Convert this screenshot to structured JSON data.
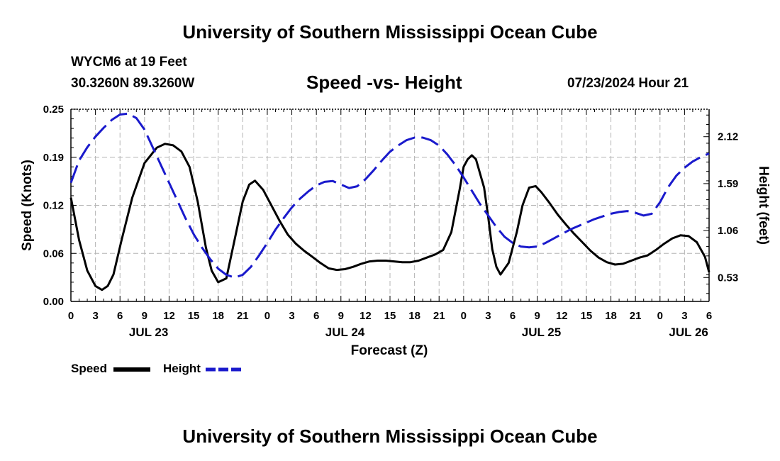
{
  "header": {
    "title": "University of Southern Mississippi Ocean Cube",
    "station": "WYCM6 at 19 Feet",
    "coords": "30.3260N  89.3260W",
    "subtitle": "Speed -vs- Height",
    "datetime": "07/23/2024 Hour 21"
  },
  "footer": {
    "title": "University of Southern Mississippi Ocean Cube"
  },
  "legend": {
    "speed_label": "Speed",
    "height_label": "Height"
  },
  "colors": {
    "speed": "#000000",
    "height": "#1a1acc",
    "grid": "#b4b4b4"
  },
  "chart_data": {
    "type": "line",
    "title": "Speed -vs- Height",
    "xlabel": "Forecast (Z)",
    "ylabel_left": "Speed (Knots)",
    "ylabel_right": "Height (feet)",
    "x_unit": "hours since 07/23 00Z",
    "xlim": [
      0,
      78
    ],
    "ylim_left": [
      0,
      0.25
    ],
    "ylim_right": [
      0.26,
      2.43
    ],
    "left_ticks": [
      "0.00",
      "0.06",
      "0.12",
      "0.19",
      "0.25"
    ],
    "left_tick_values": [
      0,
      0.0625,
      0.125,
      0.1875,
      0.25
    ],
    "right_ticks": [
      "0.53",
      "1.06",
      "1.59",
      "2.12"
    ],
    "right_tick_values": [
      0.53,
      1.06,
      1.59,
      2.12
    ],
    "x_tick_labels": [
      "0",
      "3",
      "6",
      "9",
      "12",
      "15",
      "18",
      "21",
      "0",
      "3",
      "6",
      "9",
      "12",
      "15",
      "18",
      "21",
      "0",
      "3",
      "6",
      "9",
      "12",
      "15",
      "18",
      "21",
      "0",
      "3",
      "6"
    ],
    "x_tick_values": [
      0,
      3,
      6,
      9,
      12,
      15,
      18,
      21,
      24,
      27,
      30,
      33,
      36,
      39,
      42,
      45,
      48,
      51,
      54,
      57,
      60,
      63,
      66,
      69,
      72,
      75,
      78
    ],
    "date_labels": [
      {
        "text": "JUL 23",
        "x": 9.5
      },
      {
        "text": "JUL 24",
        "x": 33.5
      },
      {
        "text": "JUL 25",
        "x": 57.5
      },
      {
        "text": "JUL 26",
        "x": 75.5
      }
    ],
    "series": [
      {
        "name": "Speed",
        "axis": "left",
        "style": "solid",
        "x": [
          0,
          1,
          2,
          3,
          3.8,
          4.5,
          5.2,
          6.2,
          7.5,
          9,
          10.5,
          11.5,
          12.5,
          13.5,
          14.5,
          15.5,
          16.5,
          17.2,
          18,
          19,
          20,
          21,
          21.8,
          22.5,
          23.5,
          24.5,
          25.5,
          26.5,
          27.5,
          28.5,
          29.5,
          30.5,
          31.5,
          32.5,
          33.5,
          34.5,
          35.5,
          36.5,
          37.5,
          38.5,
          39.5,
          40.5,
          41.5,
          42.5,
          43.5,
          44.5,
          45.5,
          46.5,
          47.5,
          48,
          48.5,
          49,
          49.5,
          50.5,
          51,
          51.5,
          52,
          52.5,
          53.5,
          54.5,
          55.2,
          56,
          56.8,
          57.5,
          58.5,
          59.5,
          60.5,
          61.5,
          62.5,
          63.5,
          64.5,
          65.5,
          66.5,
          67.5,
          68.5,
          69.5,
          70.5,
          71.5,
          72.5,
          73.5,
          74.5,
          75.5,
          76.5,
          77.5,
          78
        ],
        "y": [
          0.135,
          0.08,
          0.04,
          0.02,
          0.015,
          0.02,
          0.035,
          0.08,
          0.135,
          0.18,
          0.2,
          0.205,
          0.203,
          0.195,
          0.175,
          0.13,
          0.07,
          0.04,
          0.025,
          0.03,
          0.08,
          0.13,
          0.152,
          0.157,
          0.145,
          0.125,
          0.105,
          0.087,
          0.075,
          0.066,
          0.058,
          0.05,
          0.043,
          0.041,
          0.042,
          0.045,
          0.049,
          0.052,
          0.053,
          0.053,
          0.052,
          0.051,
          0.051,
          0.053,
          0.057,
          0.061,
          0.067,
          0.09,
          0.145,
          0.175,
          0.185,
          0.19,
          0.185,
          0.148,
          0.11,
          0.068,
          0.045,
          0.035,
          0.05,
          0.09,
          0.125,
          0.148,
          0.15,
          0.142,
          0.128,
          0.113,
          0.1,
          0.088,
          0.077,
          0.066,
          0.057,
          0.051,
          0.048,
          0.049,
          0.053,
          0.057,
          0.06,
          0.067,
          0.075,
          0.082,
          0.086,
          0.085,
          0.077,
          0.058,
          0.038
        ]
      },
      {
        "name": "Height",
        "axis": "right",
        "style": "dashed",
        "x": [
          0,
          1,
          2,
          3,
          4,
          5,
          6,
          7,
          8,
          9,
          10,
          11,
          12,
          13,
          14,
          15,
          16,
          17,
          18,
          19,
          20,
          21,
          22,
          23,
          24,
          25,
          26,
          27,
          28,
          29,
          30,
          31,
          32,
          33,
          34,
          35,
          36,
          37,
          38,
          39,
          40,
          41,
          42,
          43,
          44,
          45,
          46,
          47,
          48,
          49,
          50,
          51,
          52,
          53,
          54,
          55,
          56,
          57,
          58,
          59,
          60,
          61,
          62,
          63,
          64,
          65,
          66,
          67,
          68,
          69,
          70,
          71,
          72,
          73,
          74,
          75,
          76,
          77,
          78
        ],
        "y": [
          1.6,
          1.85,
          2.0,
          2.12,
          2.22,
          2.31,
          2.37,
          2.38,
          2.33,
          2.2,
          2.0,
          1.8,
          1.6,
          1.4,
          1.2,
          1.02,
          0.87,
          0.74,
          0.63,
          0.56,
          0.53,
          0.56,
          0.65,
          0.78,
          0.92,
          1.07,
          1.2,
          1.32,
          1.42,
          1.5,
          1.57,
          1.61,
          1.62,
          1.58,
          1.54,
          1.56,
          1.64,
          1.74,
          1.85,
          1.95,
          2.02,
          2.08,
          2.11,
          2.11,
          2.08,
          2.02,
          1.92,
          1.8,
          1.66,
          1.51,
          1.36,
          1.23,
          1.1,
          0.99,
          0.92,
          0.88,
          0.87,
          0.88,
          0.92,
          0.97,
          1.02,
          1.07,
          1.11,
          1.15,
          1.19,
          1.22,
          1.25,
          1.27,
          1.28,
          1.26,
          1.23,
          1.25,
          1.38,
          1.55,
          1.68,
          1.77,
          1.84,
          1.89,
          1.93
        ]
      }
    ]
  }
}
